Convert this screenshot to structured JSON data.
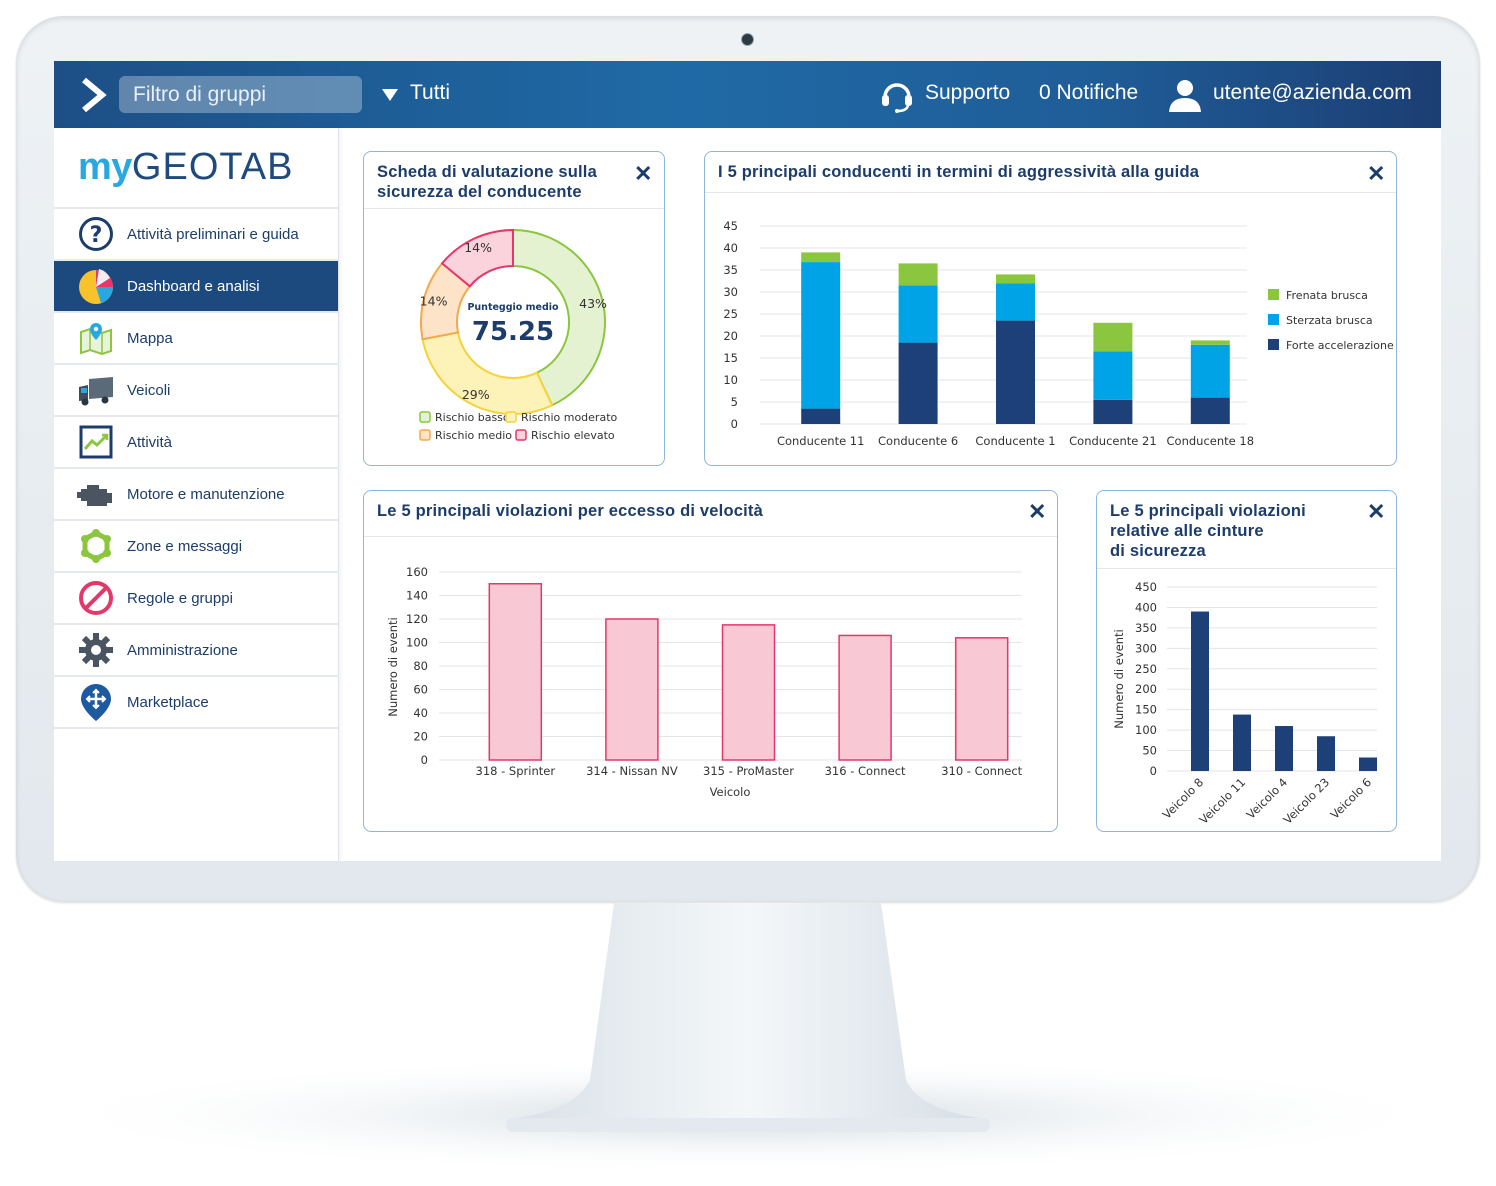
{
  "header": {
    "group_filter_placeholder": "Filtro di gruppi",
    "group_value": "Tutti",
    "support_label": "Supporto",
    "notifications_label": "0 Notifiche",
    "user_email": "utente@azienda.com"
  },
  "brand": {
    "logo_my": "my",
    "logo_geotab": "GEOTAB"
  },
  "sidebar": {
    "items": [
      {
        "label": "Attività preliminari e guida",
        "icon": "question-icon"
      },
      {
        "label": "Dashboard e analisi",
        "icon": "pie-chart-icon",
        "active": true
      },
      {
        "label": "Mappa",
        "icon": "map-icon"
      },
      {
        "label": "Veicoli",
        "icon": "truck-icon"
      },
      {
        "label": "Attività",
        "icon": "activity-chart-icon"
      },
      {
        "label": "Motore e manutenzione",
        "icon": "engine-icon"
      },
      {
        "label": "Zone e messaggi",
        "icon": "zone-icon"
      },
      {
        "label": "Regole e gruppi",
        "icon": "prohibited-icon"
      },
      {
        "label": "Amministrazione",
        "icon": "gear-icon"
      },
      {
        "label": "Marketplace",
        "icon": "marketplace-icon"
      }
    ]
  },
  "widgets": {
    "safety": {
      "title_line1": "Scheda di valutazione sulla",
      "title_line2": "sicurezza del conducente",
      "center_label": "Punteggio medio",
      "center_value": "75.25"
    },
    "aggressive": {
      "title": "I 5 principali conducenti in termini di aggressività alla guida"
    },
    "speeding": {
      "title": "Le 5 principali violazioni per eccesso di velocità"
    },
    "seatbelt": {
      "title_line1": "Le 5 principali violazioni",
      "title_line2": "relative alle cinture",
      "title_line3": "di sicurezza"
    },
    "close_symbol": "✕"
  },
  "chart_data": [
    {
      "type": "pie",
      "title": "Scheda di valutazione sulla sicurezza del conducente",
      "labels": [
        "Rischio basso",
        "Rischio moderato",
        "Rischio medio",
        "Rischio elevato"
      ],
      "values": [
        43,
        29,
        14,
        14
      ],
      "value_labels": [
        "43%",
        "29%",
        "14%",
        "14%"
      ],
      "colors": [
        "#e4f2d2",
        "#fdf3b8",
        "#fde3c8",
        "#fbd3dc"
      ],
      "stroke_colors": [
        "#8cc63f",
        "#f5d23c",
        "#f3a949",
        "#e4386a"
      ],
      "legend_placement": "bottom"
    },
    {
      "type": "bar",
      "stacked": true,
      "title": "I 5 principali conducenti in termini di aggressività alla guida",
      "categories": [
        "Conducente 11",
        "Conducente 6",
        "Conducente 1",
        "Conducente 21",
        "Conducente 18"
      ],
      "series": [
        {
          "name": "Forte accelerazione",
          "values": [
            3.5,
            18.5,
            23.5,
            5.5,
            6
          ],
          "color": "#1d4078"
        },
        {
          "name": "Sterzata brusca",
          "values": [
            33.3,
            13,
            8.5,
            11,
            12
          ],
          "color": "#00a3e6"
        },
        {
          "name": "Frenata brusca",
          "values": [
            2.2,
            5,
            2,
            6.5,
            1
          ],
          "color": "#8cc63f"
        }
      ],
      "y_ticks": [
        "0",
        "5",
        "10",
        "15",
        "20",
        "25",
        "30",
        "35",
        "40",
        "45"
      ],
      "ylim": [
        0,
        45
      ],
      "grid": true,
      "legend_placement": "right"
    },
    {
      "type": "bar",
      "title": "Le 5 principali violazioni per eccesso di velocità",
      "categories": [
        "318 - Sprinter",
        "314 - Nissan NV",
        "315 - ProMaster",
        "316 - Connect",
        "310 - Connect"
      ],
      "values": [
        150,
        120,
        115,
        106,
        104
      ],
      "y_ticks": [
        "0",
        "20",
        "40",
        "60",
        "80",
        "100",
        "120",
        "140",
        "160"
      ],
      "ylim": [
        0,
        160
      ],
      "xlabel": "Veicolo",
      "ylabel": "Numero di eventi",
      "color": "#f8c8d4",
      "stroke_color": "#e4386a",
      "grid": true
    },
    {
      "type": "bar",
      "title": "Le 5 principali violazioni relative alle cinture di sicurezza",
      "categories": [
        "Veicolo 8",
        "Veicolo 11",
        "Veicolo 4",
        "Veicolo 23",
        "Veicolo 6"
      ],
      "values": [
        390,
        138,
        110,
        85,
        33
      ],
      "y_ticks": [
        "0",
        "50",
        "100",
        "150",
        "200",
        "250",
        "300",
        "350",
        "400",
        "450"
      ],
      "ylim": [
        0,
        450
      ],
      "ylabel": "Numero di eventi",
      "color": "#1d4078",
      "grid": true
    }
  ]
}
